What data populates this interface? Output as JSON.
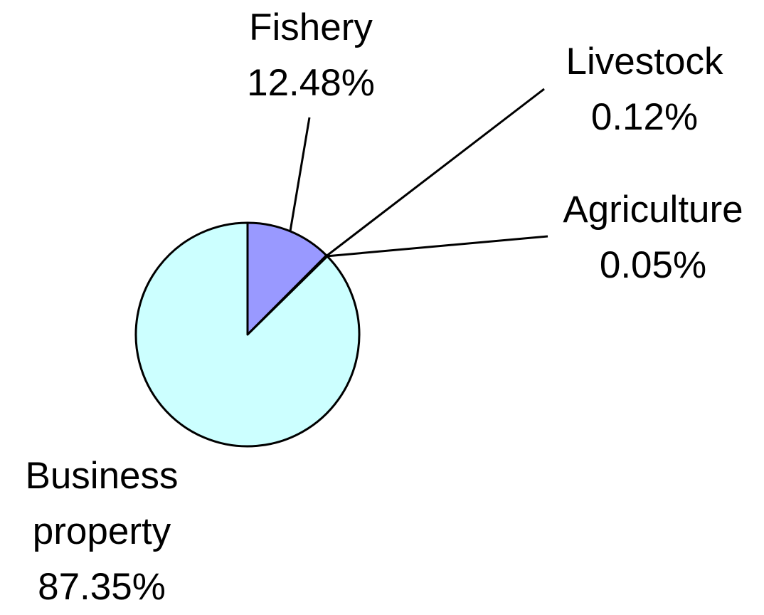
{
  "chart_data": {
    "type": "pie",
    "categories": [
      "Fishery",
      "Livestock",
      "Agriculture",
      "Business property"
    ],
    "values": [
      12.48,
      0.12,
      0.05,
      87.35
    ],
    "value_labels": [
      "12.48%",
      "0.12%",
      "0.05%",
      "87.35%"
    ],
    "colors": [
      "#9999ff",
      "#993366",
      "#ffffcc",
      "#ccffff"
    ]
  }
}
